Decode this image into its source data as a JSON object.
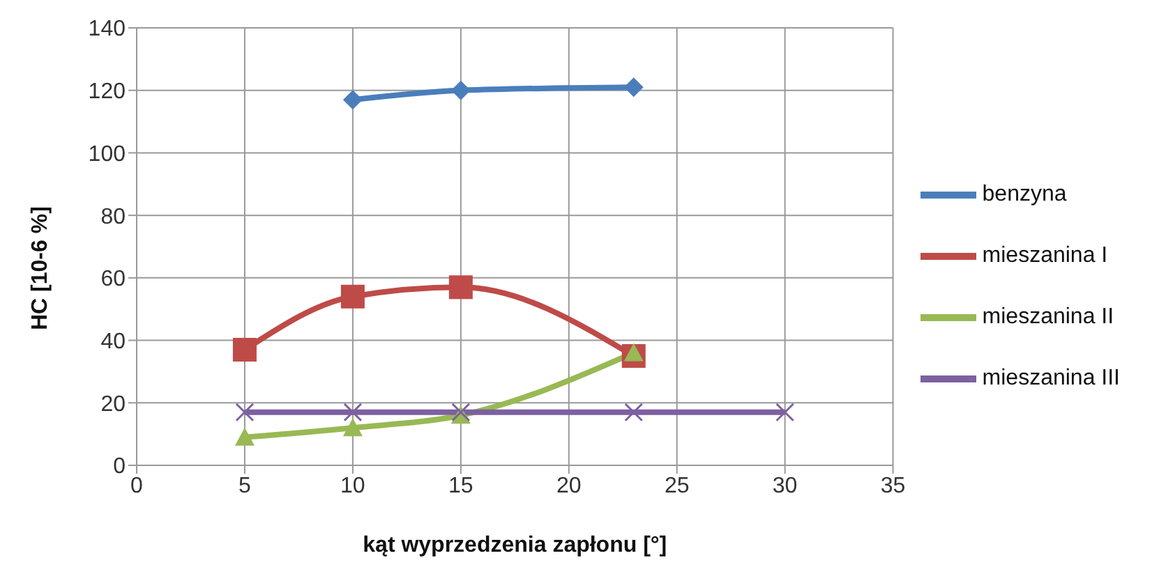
{
  "chart_data": {
    "type": "line",
    "xlabel": "kąt wyprzedzenia zapłonu [°]",
    "ylabel": "HC [10-6 %]",
    "xlim": [
      0,
      35
    ],
    "xticks": [
      0,
      5,
      10,
      15,
      20,
      25,
      30,
      35
    ],
    "ylim": [
      0,
      140
    ],
    "yticks": [
      0,
      20,
      40,
      60,
      80,
      100,
      120,
      140
    ],
    "grid": true,
    "legend": "right",
    "line_style": "solid",
    "series": [
      {
        "name": "benzyna",
        "color": "#4a7ebb",
        "marker": "diamond",
        "x": [
          10,
          15,
          23
        ],
        "values": [
          117,
          120,
          121
        ]
      },
      {
        "name": "mieszanina I",
        "color": "#be4b48",
        "marker": "square",
        "x": [
          5,
          10,
          15,
          23
        ],
        "values": [
          37,
          54,
          57,
          35
        ]
      },
      {
        "name": "mieszanina II",
        "color": "#98b954",
        "marker": "triangle",
        "x": [
          5,
          10,
          15,
          23
        ],
        "values": [
          9,
          12,
          16,
          36
        ]
      },
      {
        "name": "mieszanina III",
        "color": "#7d60a0",
        "marker": "cross",
        "x": [
          5,
          10,
          15,
          23,
          30
        ],
        "values": [
          17,
          17,
          17,
          17,
          17
        ]
      }
    ]
  }
}
